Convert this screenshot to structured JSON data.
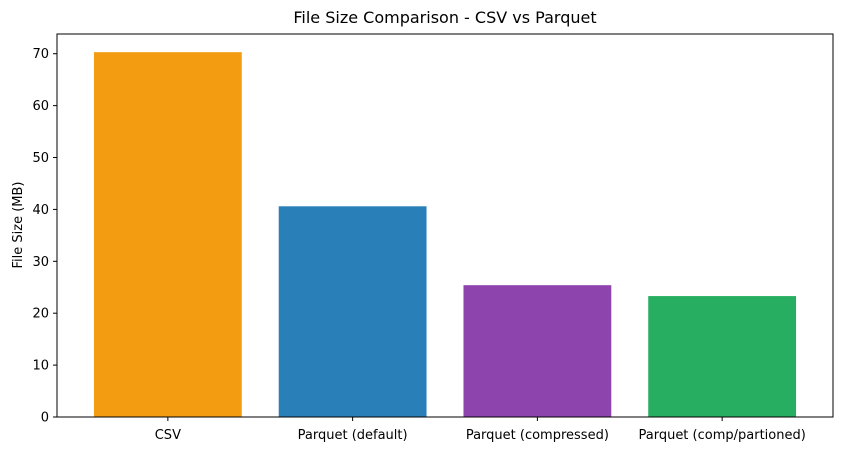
{
  "chart_data": {
    "type": "bar",
    "title": "File Size Comparison - CSV vs Parquet",
    "xlabel": "",
    "ylabel": "File Size (MB)",
    "categories": [
      "CSV",
      "Parquet (default)",
      "Parquet (compressed)",
      "Parquet (comp/partioned)"
    ],
    "values": [
      70.3,
      40.6,
      25.4,
      23.3
    ],
    "colors": [
      "#f39c12",
      "#2980b9",
      "#8e44ad",
      "#27ae60"
    ],
    "ylim": [
      0,
      73.8
    ],
    "yticks": [
      0,
      10,
      20,
      30,
      40,
      50,
      60,
      70
    ],
    "grid": false,
    "legend": "none"
  }
}
